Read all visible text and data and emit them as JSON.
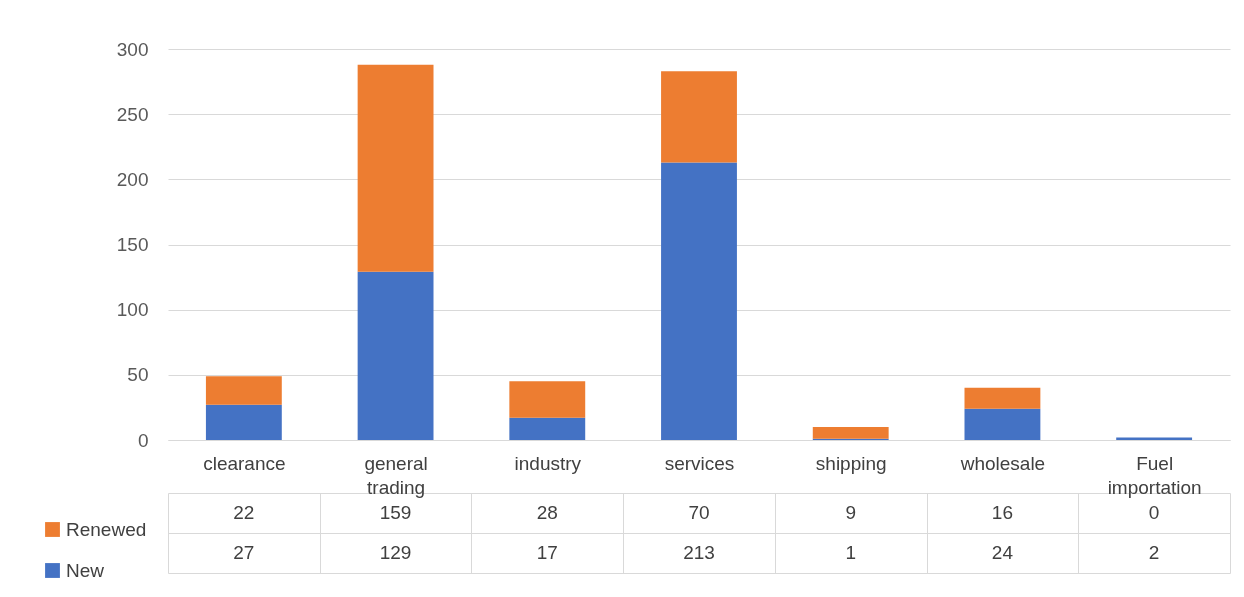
{
  "chart_data": {
    "type": "bar",
    "stacked": true,
    "categories": [
      "clearance",
      "general trading",
      "industry",
      "services",
      "shipping",
      "wholesale",
      "Fuel importation"
    ],
    "series": [
      {
        "name": "New",
        "color": "#4472c4",
        "values": [
          27,
          129,
          17,
          213,
          1,
          24,
          2
        ]
      },
      {
        "name": "Renewed",
        "color": "#ed7d31",
        "values": [
          22,
          159,
          28,
          70,
          9,
          16,
          0
        ]
      }
    ],
    "ylim": [
      0,
      300
    ],
    "yticks": [
      0,
      50,
      100,
      150,
      200,
      250,
      300
    ],
    "grid": "y",
    "legend": "bottom left",
    "data_labels": true
  }
}
